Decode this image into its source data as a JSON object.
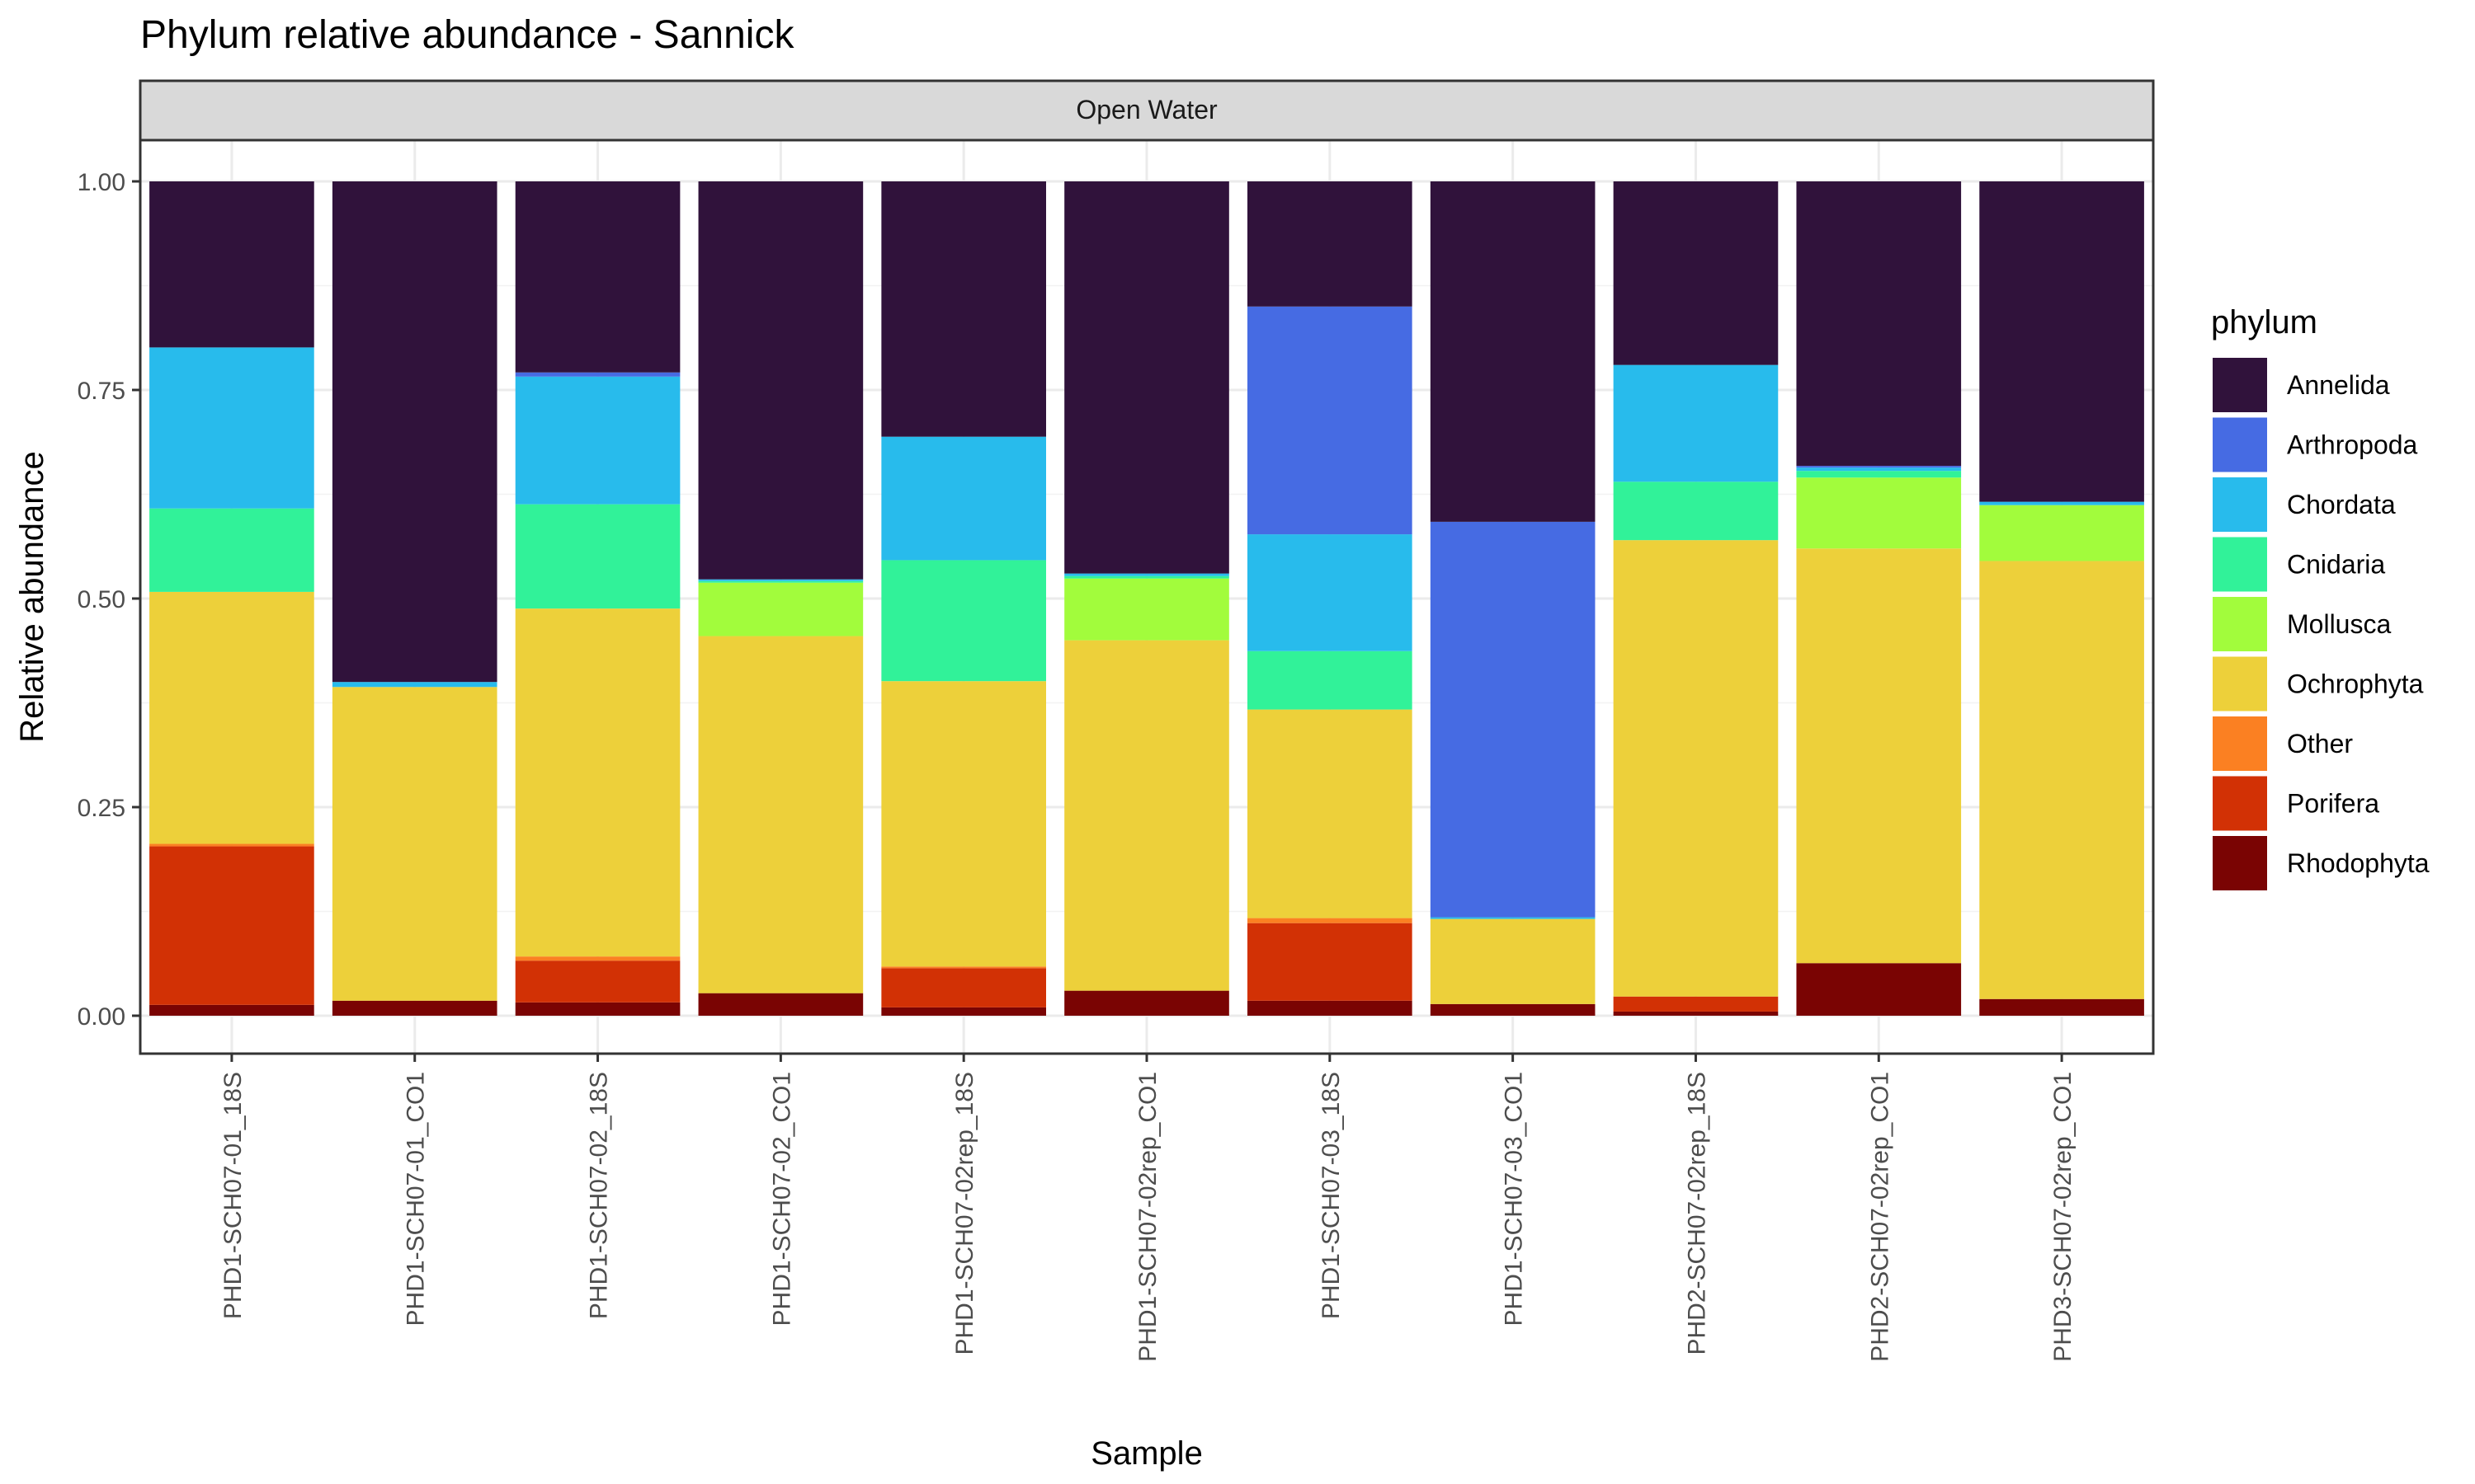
{
  "chart_data": {
    "type": "bar",
    "stacked": true,
    "title": "Phylum relative abundance - Sannick",
    "facet_label": "Open Water",
    "xlabel": "Sample",
    "ylabel": "Relative abundance",
    "ylim": [
      0,
      1
    ],
    "yticks": [
      "0.00",
      "0.25",
      "0.50",
      "0.75",
      "1.00"
    ],
    "grid": true,
    "legend_position": "right",
    "legend_title": "phylum",
    "categories": [
      "PHD1-SCH07-01_18S",
      "PHD1-SCH07-01_CO1",
      "PHD1-SCH07-02_18S",
      "PHD1-SCH07-02_CO1",
      "PHD1-SCH07-02rep_18S",
      "PHD1-SCH07-02rep_CO1",
      "PHD1-SCH07-03_18S",
      "PHD1-SCH07-03_CO1",
      "PHD2-SCH07-02rep_18S",
      "PHD2-SCH07-02rep_CO1",
      "PHD3-SCH07-02rep_CO1"
    ],
    "series": [
      {
        "name": "Rhodophyta",
        "color": "#7A0403",
        "values": [
          0.013,
          0.018,
          0.016,
          0.027,
          0.01,
          0.03,
          0.018,
          0.014,
          0.005,
          0.063,
          0.02
        ]
      },
      {
        "name": "Porifera",
        "color": "#D23105",
        "values": [
          0.19,
          0.0,
          0.05,
          0.0,
          0.047,
          0.0,
          0.093,
          0.0,
          0.018,
          0.0,
          0.0
        ]
      },
      {
        "name": "Other",
        "color": "#FB8022",
        "values": [
          0.003,
          0.0,
          0.005,
          0.0,
          0.002,
          0.0,
          0.006,
          0.0,
          0.0,
          0.0,
          0.0
        ]
      },
      {
        "name": "Ochrophyta",
        "color": "#EDD03A",
        "values": [
          0.302,
          0.376,
          0.417,
          0.428,
          0.342,
          0.42,
          0.25,
          0.102,
          0.547,
          0.497,
          0.525
        ]
      },
      {
        "name": "Mollusca",
        "color": "#A2FC3C",
        "values": [
          0.0,
          0.0,
          0.0,
          0.064,
          0.0,
          0.074,
          0.0,
          0.0,
          0.0,
          0.085,
          0.067
        ]
      },
      {
        "name": "Cnidaria",
        "color": "#31F299",
        "values": [
          0.1,
          0.0,
          0.125,
          0.002,
          0.145,
          0.003,
          0.07,
          0.0,
          0.07,
          0.008,
          0.0
        ]
      },
      {
        "name": "Chordata",
        "color": "#28BBEC",
        "values": [
          0.193,
          0.006,
          0.153,
          0.002,
          0.148,
          0.003,
          0.14,
          0.002,
          0.14,
          0.004,
          0.004
        ]
      },
      {
        "name": "Arthropoda",
        "color": "#466BE3",
        "values": [
          0.0,
          0.0,
          0.005,
          0.0,
          0.0,
          0.0,
          0.273,
          0.474,
          0.0,
          0.002,
          0.0
        ]
      },
      {
        "name": "Annelida",
        "color": "#30123B",
        "values": [
          0.199,
          0.6,
          0.229,
          0.477,
          0.306,
          0.47,
          0.15,
          0.408,
          0.22,
          0.341,
          0.384
        ]
      }
    ],
    "legend_order": [
      "Annelida",
      "Arthropoda",
      "Chordata",
      "Cnidaria",
      "Mollusca",
      "Ochrophyta",
      "Other",
      "Porifera",
      "Rhodophyta"
    ]
  }
}
